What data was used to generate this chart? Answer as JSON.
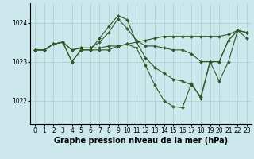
{
  "bg_color": "#cce8ec",
  "grid_color": "#aacccc",
  "line_color": "#2d5a27",
  "line_width": 0.8,
  "marker": "D",
  "marker_size": 2.0,
  "xlabel": "Graphe pression niveau de la mer (hPa)",
  "xlabel_fontsize": 7,
  "tick_fontsize": 5.5,
  "xlim": [
    -0.5,
    23.5
  ],
  "ylim": [
    1021.4,
    1024.5
  ],
  "yticks": [
    1022,
    1023,
    1024
  ],
  "xticks": [
    0,
    1,
    2,
    3,
    4,
    5,
    6,
    7,
    8,
    9,
    10,
    11,
    12,
    13,
    14,
    15,
    16,
    17,
    18,
    19,
    20,
    21,
    22,
    23
  ],
  "series": [
    [
      1023.3,
      1023.3,
      1023.45,
      1023.5,
      1023.3,
      1023.35,
      1023.35,
      1023.35,
      1023.4,
      1023.4,
      1023.45,
      1023.5,
      1023.55,
      1023.6,
      1023.65,
      1023.65,
      1023.65,
      1023.65,
      1023.65,
      1023.65,
      1023.65,
      1023.7,
      1023.8,
      1023.75
    ],
    [
      1023.3,
      1023.3,
      1023.45,
      1023.5,
      1023.3,
      1023.35,
      1023.35,
      1023.5,
      1023.75,
      1024.1,
      1023.85,
      1023.55,
      1023.4,
      1023.4,
      1023.35,
      1023.3,
      1023.3,
      1023.2,
      1023.0,
      1023.0,
      1023.0,
      1023.55,
      1023.8,
      1023.75
    ],
    [
      1023.3,
      1023.3,
      1023.45,
      1023.5,
      1023.0,
      1023.3,
      1023.3,
      1023.6,
      1023.9,
      1024.18,
      1024.08,
      1023.5,
      1023.1,
      1022.85,
      1022.7,
      1022.55,
      1022.5,
      1022.4,
      1022.1,
      1023.0,
      1023.0,
      1023.55,
      1023.8,
      1023.75
    ],
    [
      1023.3,
      1023.3,
      1023.45,
      1023.5,
      1023.0,
      1023.3,
      1023.3,
      1023.3,
      1023.3,
      1023.4,
      1023.45,
      1023.35,
      1022.9,
      1022.4,
      1022.0,
      1021.85,
      1021.82,
      1022.45,
      1022.05,
      1023.0,
      1022.5,
      1023.0,
      1023.8,
      1023.6
    ]
  ]
}
